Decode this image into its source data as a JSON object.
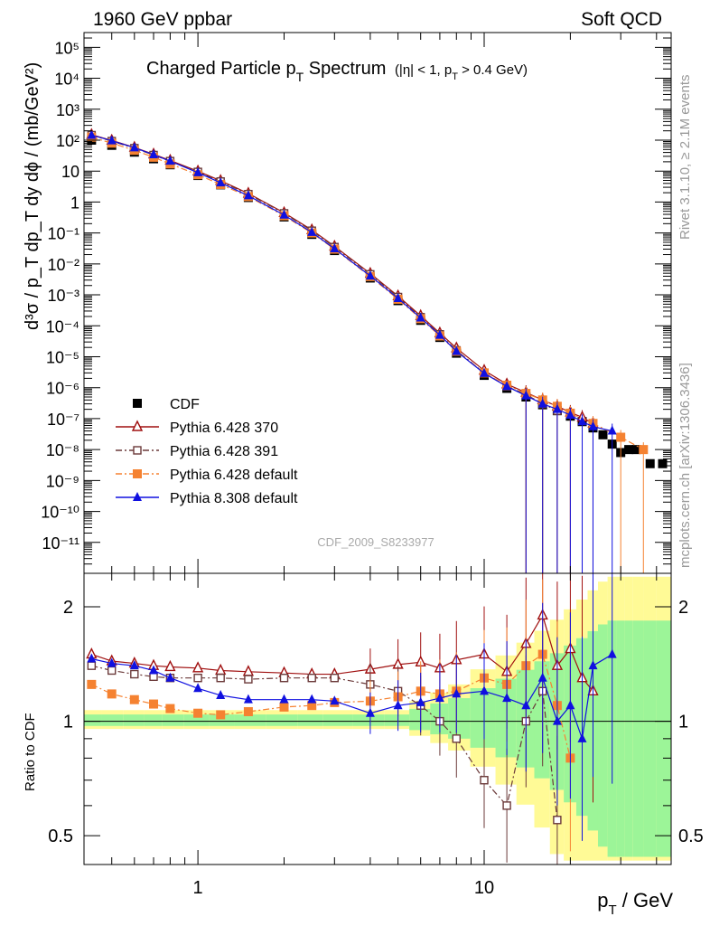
{
  "header": {
    "left": "1960 GeV ppbar",
    "right": "Soft QCD"
  },
  "side": {
    "rivet": "Rivet 3.1.10, ≥ 2.1M events",
    "mcplots": "mcplots.cern.ch [arXiv:1306.3436]"
  },
  "plot": {
    "title_main": "Charged Particle p",
    "title_sub": "T",
    "title_main2": " Spectrum",
    "title_cut": "(|η| < 1, p",
    "title_cut_sub": "T",
    "title_cut2": " > 0.4 GeV)",
    "analysis_id": "CDF_2009_S8233977",
    "ylabel": "d³σ / p_T dp_T dy dϕ / (mb/GeV²)",
    "ratio_label": "Ratio to CDF",
    "xlabel": "p",
    "xlabel_sub": "T",
    "xlabel_unit": " / GeV"
  },
  "legend": [
    {
      "label": "CDF",
      "color": "#000000",
      "marker": "square-filled",
      "dash": "none"
    },
    {
      "label": "Pythia 6.428 370",
      "color": "#a01010",
      "marker": "triangle-open",
      "dash": "solid"
    },
    {
      "label": "Pythia 6.428 391",
      "color": "#6b3a3a",
      "marker": "square-open",
      "dash": "dashdot"
    },
    {
      "label": "Pythia 6.428 default",
      "color": "#f58231",
      "marker": "square-filled",
      "dash": "dashdot"
    },
    {
      "label": "Pythia 8.308 default",
      "color": "#1010e0",
      "marker": "triangle-filled",
      "dash": "solid"
    }
  ],
  "chart_data": [
    {
      "type": "scatter",
      "panel": "main",
      "xscale": "log",
      "yscale": "log",
      "xlim": [
        0.4,
        45
      ],
      "ylim": [
        1e-12,
        300000.0
      ],
      "yticks": [
        "10⁵",
        "10⁴",
        "10³",
        "10²",
        "10",
        "1",
        "10⁻¹",
        "10⁻²",
        "10⁻³",
        "10⁻⁴",
        "10⁻⁵",
        "10⁻⁶",
        "10⁻⁷",
        "10⁻⁸",
        "10⁻⁹",
        "10⁻¹⁰",
        "10⁻¹¹"
      ],
      "ytick_values": [
        100000.0,
        10000.0,
        1000.0,
        100.0,
        10,
        1,
        0.1,
        0.01,
        0.001,
        0.0001,
        1e-05,
        1e-06,
        1e-07,
        1e-08,
        1e-09,
        1e-10,
        1e-11
      ],
      "series": [
        {
          "name": "CDF",
          "x": [
            0.425,
            0.5,
            0.6,
            0.7,
            0.8,
            1.0,
            1.2,
            1.5,
            2.0,
            2.5,
            3.0,
            4.0,
            5.0,
            6.0,
            7.0,
            8.0,
            10.0,
            12.0,
            14.0,
            16.0,
            18.0,
            20.0,
            22.0,
            24.0,
            26.0,
            28.0,
            30.0,
            32.0,
            34.0,
            38.0,
            42.0
          ],
          "y": [
            100,
            68,
            41,
            25,
            16,
            7.2,
            3.6,
            1.4,
            0.33,
            0.09,
            0.027,
            0.0035,
            0.00065,
            0.00015,
            4.2e-05,
            1.3e-05,
            2.5e-06,
            9.5e-07,
            5e-07,
            2.8e-07,
            1.8e-07,
            1.2e-07,
            8e-08,
            5e-08,
            3e-08,
            1.5e-08,
            8e-09,
            1e-08,
            1e-08,
            3.5e-09,
            3.5e-09
          ]
        },
        {
          "name": "Pythia 6.428 370",
          "x": [
            0.425,
            0.5,
            0.6,
            0.7,
            0.8,
            1.0,
            1.2,
            1.5,
            2.0,
            2.5,
            3.0,
            4.0,
            5.0,
            6.0,
            7.0,
            8.0,
            10.0,
            12.0,
            14.0,
            16.0,
            18.0,
            20.0,
            22.0,
            24.0
          ],
          "y": [
            150,
            98,
            58,
            35,
            22,
            9.9,
            4.9,
            1.9,
            0.45,
            0.125,
            0.037,
            0.0049,
            0.00092,
            0.00021,
            5.8e-05,
            1.9e-05,
            3.6e-06,
            1.3e-06,
            7e-07,
            4e-07,
            2.5e-07,
            1.6e-07,
            1.1e-07,
            7e-08
          ]
        },
        {
          "name": "Pythia 6.428 391",
          "x": [
            0.425,
            0.5,
            0.6,
            0.7,
            0.8,
            1.0,
            1.2,
            1.5,
            2.0,
            2.5,
            3.0,
            4.0,
            5.0,
            6.0,
            7.0,
            8.0,
            10.0,
            12.0,
            14.0,
            16.0,
            18.0
          ],
          "y": [
            145,
            93,
            55,
            33,
            21,
            9.4,
            4.6,
            1.8,
            0.43,
            0.118,
            0.035,
            0.0046,
            0.00085,
            0.00019,
            5.3e-05,
            1.6e-05,
            3e-06,
            1.1e-06,
            6e-07,
            3e-07,
            1.8e-07
          ]
        },
        {
          "name": "Pythia 6.428 default",
          "x": [
            0.425,
            0.5,
            0.6,
            0.7,
            0.8,
            1.0,
            1.2,
            1.5,
            2.0,
            2.5,
            3.0,
            4.0,
            5.0,
            6.0,
            7.0,
            8.0,
            10.0,
            12.0,
            14.0,
            16.0,
            18.0,
            20.0,
            24.0,
            30.0,
            36.0
          ],
          "y": [
            125,
            80,
            47,
            28,
            17,
            7.6,
            3.7,
            1.5,
            0.36,
            0.1,
            0.03,
            0.0039,
            0.00072,
            0.00017,
            4.7e-05,
            1.5e-05,
            3e-06,
            1.2e-06,
            6.5e-07,
            4e-07,
            2.5e-07,
            1.5e-07,
            7e-08,
            2.5e-08,
            1e-08
          ]
        },
        {
          "name": "Pythia 8.308 default",
          "x": [
            0.425,
            0.5,
            0.6,
            0.7,
            0.8,
            1.0,
            1.2,
            1.5,
            2.0,
            2.5,
            3.0,
            4.0,
            5.0,
            6.0,
            7.0,
            8.0,
            10.0,
            12.0,
            14.0,
            16.0,
            18.0,
            20.0,
            22.0,
            24.0,
            28.0
          ],
          "y": [
            145,
            96,
            57,
            34,
            21,
            8.9,
            4.2,
            1.6,
            0.38,
            0.105,
            0.031,
            0.0041,
            0.00077,
            0.00018,
            5e-05,
            1.5e-05,
            2.9e-06,
            1.1e-06,
            5.5e-07,
            3e-07,
            2e-07,
            1.3e-07,
            8e-08,
            5.5e-08,
            4e-08
          ]
        }
      ]
    },
    {
      "type": "scatter",
      "panel": "ratio",
      "xscale": "log",
      "yscale": "log",
      "xlim": [
        0.4,
        45
      ],
      "ylim": [
        0.42,
        2.45
      ],
      "yticks": [
        "0.5",
        "1",
        "2"
      ],
      "ytick_values": [
        0.5,
        1,
        2
      ],
      "xticks": [
        "1",
        "10"
      ],
      "xtick_values": [
        1,
        10
      ],
      "series": [
        {
          "name": "Pythia 6.428 370",
          "x": [
            0.425,
            0.5,
            0.6,
            0.7,
            0.8,
            1.0,
            1.2,
            1.5,
            2.0,
            2.5,
            3.0,
            4.0,
            5.0,
            6.0,
            7.0,
            8.0,
            10.0,
            12.0,
            14.0,
            16.0,
            18.0,
            20.0,
            22.0,
            24.0
          ],
          "y": [
            1.5,
            1.44,
            1.42,
            1.4,
            1.39,
            1.38,
            1.36,
            1.35,
            1.34,
            1.33,
            1.33,
            1.37,
            1.41,
            1.43,
            1.38,
            1.45,
            1.5,
            1.35,
            1.6,
            1.9,
            1.4,
            1.55,
            1.3,
            1.2
          ]
        },
        {
          "name": "Pythia 6.428 391",
          "x": [
            0.425,
            0.5,
            0.6,
            0.7,
            0.8,
            1.0,
            1.2,
            1.5,
            2.0,
            2.5,
            3.0,
            4.0,
            5.0,
            6.0,
            7.0,
            8.0,
            10.0,
            12.0,
            14.0,
            16.0,
            18.0
          ],
          "y": [
            1.4,
            1.36,
            1.33,
            1.31,
            1.3,
            1.3,
            1.3,
            1.29,
            1.3,
            1.3,
            1.3,
            1.25,
            1.2,
            1.1,
            1.0,
            0.9,
            0.7,
            0.6,
            1.0,
            1.2,
            0.55
          ]
        },
        {
          "name": "Pythia 6.428 default",
          "x": [
            0.425,
            0.5,
            0.6,
            0.7,
            0.8,
            1.0,
            1.2,
            1.5,
            2.0,
            2.5,
            3.0,
            4.0,
            5.0,
            6.0,
            7.0,
            8.0,
            10.0,
            12.0,
            14.0,
            16.0,
            18.0,
            20.0
          ],
          "y": [
            1.25,
            1.18,
            1.14,
            1.11,
            1.08,
            1.05,
            1.04,
            1.06,
            1.09,
            1.1,
            1.12,
            1.13,
            1.16,
            1.2,
            1.18,
            1.2,
            1.3,
            1.25,
            1.4,
            1.5,
            1.1,
            0.8
          ]
        },
        {
          "name": "Pythia 8.308 default",
          "x": [
            0.425,
            0.5,
            0.6,
            0.7,
            0.8,
            1.0,
            1.2,
            1.5,
            2.0,
            2.5,
            3.0,
            4.0,
            5.0,
            6.0,
            7.0,
            8.0,
            10.0,
            12.0,
            14.0,
            16.0,
            18.0,
            20.0,
            22.0,
            24.0,
            28.0
          ],
          "y": [
            1.46,
            1.42,
            1.4,
            1.36,
            1.3,
            1.22,
            1.17,
            1.14,
            1.14,
            1.14,
            1.13,
            1.05,
            1.1,
            1.12,
            1.15,
            1.18,
            1.2,
            1.15,
            1.1,
            1.3,
            1.0,
            1.1,
            0.9,
            1.4,
            1.5
          ]
        }
      ]
    }
  ]
}
